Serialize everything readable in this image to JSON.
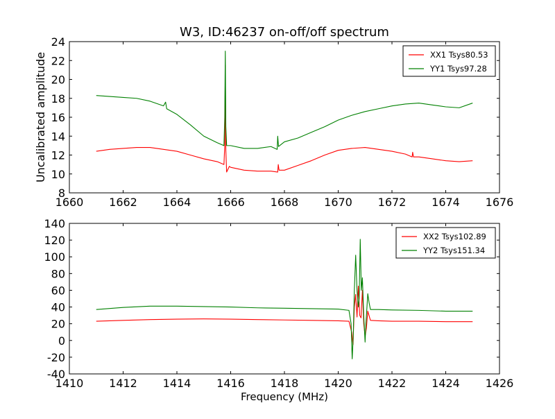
{
  "chart_data": [
    {
      "type": "line",
      "title": "W3, ID:46237 on-off/off spectrum",
      "xlabel": "",
      "ylabel": "Uncalibrated amplitude",
      "xlim": [
        1660,
        1676
      ],
      "ylim": [
        8,
        24
      ],
      "xticks": [
        1660,
        1662,
        1664,
        1666,
        1668,
        1670,
        1672,
        1674,
        1676
      ],
      "yticks": [
        8,
        10,
        12,
        14,
        16,
        18,
        20,
        22,
        24
      ],
      "legend_position": "top-right",
      "grid": false,
      "series": [
        {
          "name": "XX1 Tsys80.53",
          "color": "#ff0000",
          "points": [
            [
              1661.0,
              12.4
            ],
            [
              1661.5,
              12.6
            ],
            [
              1662.0,
              12.7
            ],
            [
              1662.5,
              12.8
            ],
            [
              1663.0,
              12.8
            ],
            [
              1663.5,
              12.6
            ],
            [
              1664.0,
              12.4
            ],
            [
              1664.5,
              12.0
            ],
            [
              1665.0,
              11.6
            ],
            [
              1665.5,
              11.3
            ],
            [
              1665.75,
              11.0
            ],
            [
              1665.78,
              13.0
            ],
            [
              1665.8,
              21.5
            ],
            [
              1665.82,
              12.5
            ],
            [
              1665.85,
              10.2
            ],
            [
              1665.95,
              10.8
            ],
            [
              1666.0,
              10.7
            ],
            [
              1666.5,
              10.4
            ],
            [
              1667.0,
              10.3
            ],
            [
              1667.5,
              10.3
            ],
            [
              1667.75,
              10.2
            ],
            [
              1667.77,
              11.0
            ],
            [
              1667.8,
              10.4
            ],
            [
              1668.0,
              10.4
            ],
            [
              1668.5,
              10.9
            ],
            [
              1669.0,
              11.4
            ],
            [
              1669.5,
              12.0
            ],
            [
              1670.0,
              12.5
            ],
            [
              1670.5,
              12.7
            ],
            [
              1671.0,
              12.8
            ],
            [
              1671.5,
              12.6
            ],
            [
              1672.0,
              12.4
            ],
            [
              1672.5,
              12.1
            ],
            [
              1672.75,
              11.8
            ],
            [
              1672.77,
              12.3
            ],
            [
              1672.8,
              11.8
            ],
            [
              1673.0,
              11.8
            ],
            [
              1673.5,
              11.6
            ],
            [
              1674.0,
              11.4
            ],
            [
              1674.5,
              11.3
            ],
            [
              1675.0,
              11.4
            ]
          ]
        },
        {
          "name": "YY1 Tsys97.28",
          "color": "#008000",
          "points": [
            [
              1661.0,
              18.3
            ],
            [
              1661.5,
              18.2
            ],
            [
              1662.0,
              18.1
            ],
            [
              1662.5,
              18.0
            ],
            [
              1663.0,
              17.7
            ],
            [
              1663.5,
              17.2
            ],
            [
              1663.58,
              17.6
            ],
            [
              1663.62,
              16.9
            ],
            [
              1664.0,
              16.3
            ],
            [
              1664.5,
              15.2
            ],
            [
              1665.0,
              14.0
            ],
            [
              1665.5,
              13.3
            ],
            [
              1665.75,
              13.0
            ],
            [
              1665.78,
              16.0
            ],
            [
              1665.8,
              23.0
            ],
            [
              1665.82,
              15.0
            ],
            [
              1665.85,
              13.0
            ],
            [
              1666.0,
              13.0
            ],
            [
              1666.5,
              12.7
            ],
            [
              1667.0,
              12.7
            ],
            [
              1667.5,
              12.9
            ],
            [
              1667.73,
              12.6
            ],
            [
              1667.75,
              14.0
            ],
            [
              1667.78,
              12.9
            ],
            [
              1668.0,
              13.4
            ],
            [
              1668.5,
              13.8
            ],
            [
              1669.0,
              14.4
            ],
            [
              1669.5,
              15.0
            ],
            [
              1670.0,
              15.7
            ],
            [
              1670.5,
              16.2
            ],
            [
              1671.0,
              16.6
            ],
            [
              1671.5,
              16.9
            ],
            [
              1672.0,
              17.2
            ],
            [
              1672.5,
              17.4
            ],
            [
              1673.0,
              17.5
            ],
            [
              1673.5,
              17.3
            ],
            [
              1674.0,
              17.1
            ],
            [
              1674.5,
              17.0
            ],
            [
              1675.0,
              17.5
            ]
          ]
        }
      ]
    },
    {
      "type": "line",
      "title": "",
      "xlabel": "Frequency (MHz)",
      "ylabel": "",
      "xlim": [
        1410,
        1426
      ],
      "ylim": [
        -40,
        140
      ],
      "xticks": [
        1410,
        1412,
        1414,
        1416,
        1418,
        1420,
        1422,
        1424,
        1426
      ],
      "yticks": [
        -40,
        -20,
        0,
        20,
        40,
        60,
        80,
        100,
        120,
        140
      ],
      "legend_position": "top-right",
      "grid": false,
      "series": [
        {
          "name": "XX2 Tsys102.89",
          "color": "#ff0000",
          "points": [
            [
              1411.0,
              23.0
            ],
            [
              1412.0,
              24.0
            ],
            [
              1413.0,
              25.0
            ],
            [
              1414.0,
              25.5
            ],
            [
              1415.0,
              25.8
            ],
            [
              1416.0,
              25.5
            ],
            [
              1417.0,
              25.0
            ],
            [
              1418.0,
              24.5
            ],
            [
              1419.0,
              24.0
            ],
            [
              1420.0,
              23.5
            ],
            [
              1420.4,
              23.0
            ],
            [
              1420.5,
              10.0
            ],
            [
              1420.55,
              -5.0
            ],
            [
              1420.6,
              40.0
            ],
            [
              1420.65,
              55.0
            ],
            [
              1420.7,
              28.0
            ],
            [
              1420.75,
              65.0
            ],
            [
              1420.8,
              30.0
            ],
            [
              1420.85,
              27.0
            ],
            [
              1420.9,
              60.0
            ],
            [
              1420.95,
              20.0
            ],
            [
              1421.0,
              5.0
            ],
            [
              1421.05,
              15.0
            ],
            [
              1421.1,
              35.0
            ],
            [
              1421.2,
              24.0
            ],
            [
              1421.5,
              23.5
            ],
            [
              1422.0,
              23.0
            ],
            [
              1423.0,
              23.0
            ],
            [
              1424.0,
              22.5
            ],
            [
              1425.0,
              22.5
            ]
          ]
        },
        {
          "name": "YY2 Tsys151.34",
          "color": "#008000",
          "points": [
            [
              1411.0,
              37.0
            ],
            [
              1412.0,
              39.5
            ],
            [
              1413.0,
              41.0
            ],
            [
              1414.0,
              41.0
            ],
            [
              1415.0,
              40.5
            ],
            [
              1416.0,
              40.0
            ],
            [
              1417.0,
              39.0
            ],
            [
              1418.0,
              38.5
            ],
            [
              1419.0,
              38.0
            ],
            [
              1420.0,
              37.5
            ],
            [
              1420.4,
              36.0
            ],
            [
              1420.48,
              20.0
            ],
            [
              1420.52,
              -22.0
            ],
            [
              1420.56,
              5.0
            ],
            [
              1420.6,
              60.0
            ],
            [
              1420.65,
              102.0
            ],
            [
              1420.7,
              60.0
            ],
            [
              1420.75,
              40.0
            ],
            [
              1420.78,
              50.0
            ],
            [
              1420.82,
              121.0
            ],
            [
              1420.86,
              60.0
            ],
            [
              1420.9,
              75.0
            ],
            [
              1420.95,
              30.0
            ],
            [
              1421.0,
              -2.0
            ],
            [
              1421.03,
              20.0
            ],
            [
              1421.07,
              40.0
            ],
            [
              1421.1,
              56.0
            ],
            [
              1421.15,
              45.0
            ],
            [
              1421.2,
              37.0
            ],
            [
              1421.5,
              37.0
            ],
            [
              1422.0,
              36.5
            ],
            [
              1423.0,
              36.0
            ],
            [
              1424.0,
              35.0
            ],
            [
              1425.0,
              35.0
            ]
          ]
        }
      ]
    }
  ]
}
